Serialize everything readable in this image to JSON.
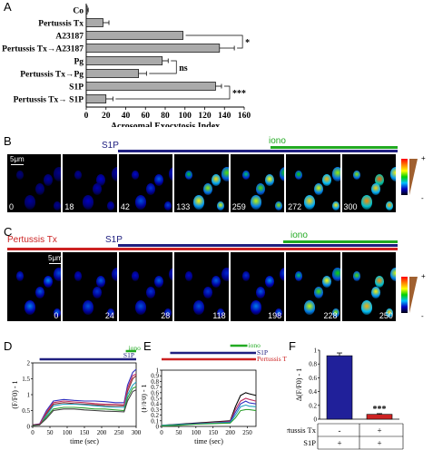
{
  "panel_labels": {
    "a": "A",
    "b": "B",
    "c": "C",
    "d": "D",
    "e": "E",
    "f": "F"
  },
  "chart_data": [
    {
      "type": "bar",
      "panel": "A",
      "orientation": "horizontal",
      "categories": [
        "Co",
        "Pertussis Tx",
        "A23187",
        "Pertussis Tx→A23187",
        "Pg",
        "Pertussis Tx→Pg",
        "S1P",
        "Pertussis Tx→ S1P"
      ],
      "values": [
        1,
        17,
        98,
        135,
        77,
        53,
        131,
        20
      ],
      "errors": [
        1,
        6,
        0,
        15,
        6,
        8,
        6,
        7
      ],
      "xlabel": "Acrosomal Exocytosis Index",
      "xlim": [
        0,
        160
      ],
      "xticks": [
        "0",
        "20",
        "40",
        "60",
        "80",
        "100",
        "120",
        "140",
        "160"
      ],
      "significance": [
        "*",
        "ns",
        "***"
      ],
      "bar_color": "#aaaaaa"
    },
    {
      "type": "line",
      "panel": "D",
      "xlabel": "time (sec)",
      "ylabel": "(F/F0) - 1",
      "xlim": [
        0,
        300
      ],
      "ylim": [
        0,
        2
      ],
      "xticks": [
        "0",
        "50",
        "100",
        "150",
        "200",
        "250",
        "300"
      ],
      "yticks": [
        "0",
        "0.5",
        "1",
        "1.5",
        "2"
      ],
      "treatments": [
        {
          "name": "iono",
          "color": "#22aa22",
          "start": 270,
          "end": 300
        },
        {
          "name": "S1P",
          "color": "#202080",
          "start": 20,
          "end": 300
        }
      ],
      "series": [
        {
          "color": "#3030c0",
          "x": [
            0,
            20,
            40,
            60,
            90,
            120,
            150,
            180,
            210,
            240,
            265,
            275,
            290,
            300
          ],
          "y": [
            0.05,
            0.08,
            0.5,
            0.8,
            0.85,
            0.82,
            0.8,
            0.8,
            0.78,
            0.75,
            0.75,
            1.3,
            1.7,
            1.8
          ]
        },
        {
          "color": "#8a2a2a",
          "x": [
            0,
            20,
            40,
            60,
            90,
            120,
            150,
            180,
            210,
            240,
            265,
            275,
            290,
            300
          ],
          "y": [
            0.05,
            0.07,
            0.4,
            0.7,
            0.75,
            0.72,
            0.7,
            0.68,
            0.66,
            0.65,
            0.65,
            1.1,
            1.5,
            1.6
          ]
        },
        {
          "color": "#20a0c0",
          "x": [
            0,
            20,
            40,
            60,
            90,
            120,
            150,
            180,
            210,
            240,
            265,
            275,
            290,
            300
          ],
          "y": [
            0.04,
            0.06,
            0.35,
            0.65,
            0.7,
            0.7,
            0.68,
            0.65,
            0.62,
            0.6,
            0.6,
            1.0,
            1.3,
            1.4
          ]
        },
        {
          "color": "#30a030",
          "x": [
            0,
            20,
            40,
            60,
            90,
            120,
            150,
            180,
            210,
            240,
            265,
            275,
            290,
            300
          ],
          "y": [
            0.03,
            0.05,
            0.3,
            0.55,
            0.6,
            0.6,
            0.58,
            0.55,
            0.55,
            0.52,
            0.5,
            0.9,
            1.2,
            1.25
          ]
        },
        {
          "color": "#c03060",
          "x": [
            0,
            20,
            40,
            60,
            90,
            120,
            150,
            180,
            210,
            240,
            265,
            275,
            290,
            300
          ],
          "y": [
            0.05,
            0.06,
            0.45,
            0.75,
            0.8,
            0.77,
            0.75,
            0.72,
            0.7,
            0.7,
            0.68,
            1.2,
            1.6,
            1.65
          ]
        },
        {
          "color": "#404040",
          "x": [
            0,
            20,
            40,
            60,
            90,
            120,
            150,
            180,
            210,
            240,
            265,
            275,
            290,
            300
          ],
          "y": [
            0.04,
            0.05,
            0.25,
            0.5,
            0.55,
            0.55,
            0.52,
            0.5,
            0.48,
            0.47,
            0.46,
            0.8,
            1.1,
            1.15
          ]
        }
      ]
    },
    {
      "type": "line",
      "panel": "E",
      "xlabel": "time (sec)",
      "ylabel": "(F/F0) - 1",
      "xlim": [
        0,
        275
      ],
      "ylim": [
        0,
        1
      ],
      "xticks": [
        "0",
        "50",
        "100",
        "150",
        "200",
        "250"
      ],
      "yticks": [
        "0",
        "0.1",
        "0.2",
        "0.3",
        "0.4",
        "0.5",
        "0.6",
        "0.7",
        "0.8",
        "0.9",
        "1"
      ],
      "treatments": [
        {
          "name": "iono",
          "color": "#22aa22",
          "start": 200,
          "end": 250
        },
        {
          "name": "S1P",
          "color": "#202080",
          "start": 25,
          "end": 275
        },
        {
          "name": "Pertussis Tx",
          "color": "#cc2222",
          "start": 0,
          "end": 275
        }
      ],
      "series": [
        {
          "color": "#000000",
          "x": [
            0,
            50,
            100,
            150,
            200,
            215,
            230,
            245,
            255,
            275
          ],
          "y": [
            0.02,
            0.04,
            0.06,
            0.08,
            0.1,
            0.35,
            0.55,
            0.6,
            0.58,
            0.55
          ]
        },
        {
          "color": "#c03060",
          "x": [
            0,
            50,
            100,
            150,
            200,
            215,
            230,
            245,
            255,
            275
          ],
          "y": [
            0.02,
            0.03,
            0.05,
            0.07,
            0.09,
            0.3,
            0.45,
            0.5,
            0.48,
            0.45
          ]
        },
        {
          "color": "#3030c0",
          "x": [
            0,
            50,
            100,
            150,
            200,
            215,
            230,
            245,
            255,
            275
          ],
          "y": [
            0.01,
            0.03,
            0.05,
            0.06,
            0.08,
            0.25,
            0.4,
            0.45,
            0.42,
            0.4
          ]
        },
        {
          "color": "#20a0c0",
          "x": [
            0,
            50,
            100,
            150,
            200,
            215,
            230,
            245,
            255,
            275
          ],
          "y": [
            0.02,
            0.03,
            0.04,
            0.06,
            0.07,
            0.2,
            0.35,
            0.38,
            0.36,
            0.35
          ]
        },
        {
          "color": "#30a030",
          "x": [
            0,
            50,
            100,
            150,
            200,
            215,
            230,
            245,
            255,
            275
          ],
          "y": [
            0.01,
            0.02,
            0.04,
            0.05,
            0.06,
            0.15,
            0.28,
            0.3,
            0.3,
            0.28
          ]
        }
      ]
    },
    {
      "type": "bar",
      "panel": "F",
      "values": [
        0.92,
        0.07
      ],
      "errors": [
        0.04,
        0.01
      ],
      "colors": [
        "#20209a",
        "#cc2222"
      ],
      "ylabel": "Δ(F/F0) - 1",
      "ylim": [
        0,
        1
      ],
      "yticks": [
        "0",
        "0.2",
        "0.4",
        "0.6",
        "0.8",
        "1"
      ],
      "significance": "***",
      "table": {
        "rows": [
          {
            "label": "Pertussis Tx",
            "values": [
              "-",
              "+"
            ]
          },
          {
            "label": "S1P",
            "values": [
              "+",
              "+"
            ]
          }
        ]
      }
    }
  ],
  "imaging": {
    "b": {
      "s1p_label": "S1P",
      "iono_label": "iono",
      "scale_label": "5μm",
      "times": [
        "0",
        "18",
        "42",
        "133",
        "259",
        "272",
        "300"
      ],
      "intensities": [
        0.15,
        0.2,
        0.3,
        0.75,
        0.7,
        0.8,
        0.9
      ],
      "scale_plus": "+",
      "scale_minus": "-"
    },
    "c": {
      "ptx_label": "Pertussis Tx",
      "s1p_label": "S1P",
      "iono_label": "iono",
      "scale_label": "5μm",
      "times": [
        "0",
        "24",
        "28",
        "118",
        "198",
        "228",
        "250"
      ],
      "intensities": [
        0.35,
        0.3,
        0.3,
        0.3,
        0.35,
        0.7,
        0.85
      ],
      "scale_plus": "+",
      "scale_minus": "-"
    }
  },
  "colors": {
    "s1p": "#202080",
    "iono": "#22aa22",
    "ptx": "#cc2222"
  }
}
